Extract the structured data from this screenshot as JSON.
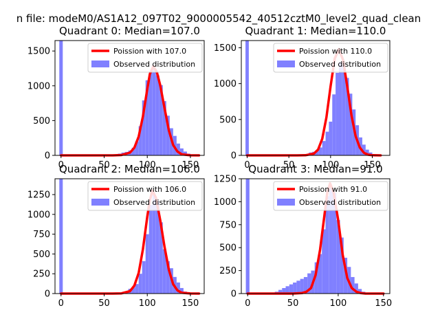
{
  "figure": {
    "suptitle": "n file: modeM0/AS1A12_097T02_9000005542_40512cztM0_level2_quad_clean",
    "colors": {
      "hist": "#8080ff",
      "fit": "#ff0000",
      "axis": "#000000",
      "background": "#ffffff"
    }
  },
  "chart_data": [
    {
      "type": "bar",
      "title": "Quadrant 0: Median=107.0",
      "xlim": [
        -7,
        166
      ],
      "ylim": [
        0,
        1650
      ],
      "xticks": [
        0,
        50,
        100,
        150
      ],
      "yticks": [
        0,
        500,
        1000,
        1500
      ],
      "legend": {
        "position": "top-right",
        "entries": [
          "Poission with 107.0",
          "Observed distribution"
        ]
      },
      "bin_width": 4,
      "bars": [
        [
          -2,
          1650
        ],
        [
          62,
          10
        ],
        [
          66,
          25
        ],
        [
          70,
          40
        ],
        [
          74,
          50
        ],
        [
          78,
          70
        ],
        [
          82,
          110
        ],
        [
          86,
          200
        ],
        [
          90,
          420
        ],
        [
          94,
          790
        ],
        [
          98,
          1080
        ],
        [
          102,
          1200
        ],
        [
          106,
          1250
        ],
        [
          110,
          1150
        ],
        [
          114,
          1010
        ],
        [
          118,
          780
        ],
        [
          122,
          570
        ],
        [
          126,
          390
        ],
        [
          130,
          280
        ],
        [
          134,
          170
        ],
        [
          138,
          100
        ],
        [
          142,
          55
        ],
        [
          146,
          25
        ],
        [
          150,
          10
        ]
      ],
      "fit_line": {
        "name": "Poission with 107.0",
        "x": [
          0,
          60,
          70,
          80,
          85,
          90,
          95,
          100,
          103,
          107,
          111,
          115,
          120,
          125,
          130,
          135,
          140,
          150,
          160
        ],
        "y": [
          0,
          0,
          5,
          40,
          110,
          270,
          560,
          950,
          1170,
          1280,
          1200,
          1010,
          680,
          360,
          150,
          55,
          15,
          1,
          0
        ]
      }
    },
    {
      "type": "bar",
      "title": "Quadrant 1: Median=110.0",
      "xlim": [
        -7,
        171
      ],
      "ylim": [
        0,
        1600
      ],
      "xticks": [
        0,
        50,
        100,
        150
      ],
      "yticks": [
        0,
        500,
        1000,
        1500
      ],
      "legend": {
        "position": "top-right",
        "entries": [
          "Poission with 110.0",
          "Observed distribution"
        ]
      },
      "bin_width": 4,
      "bars": [
        [
          -2,
          1600
        ],
        [
          62,
          10
        ],
        [
          66,
          15
        ],
        [
          70,
          20
        ],
        [
          74,
          40
        ],
        [
          78,
          50
        ],
        [
          82,
          70
        ],
        [
          86,
          110
        ],
        [
          90,
          200
        ],
        [
          94,
          330
        ],
        [
          98,
          470
        ],
        [
          102,
          850
        ],
        [
          106,
          1150
        ],
        [
          110,
          1300
        ],
        [
          114,
          1250
        ],
        [
          118,
          1080
        ],
        [
          122,
          860
        ],
        [
          126,
          640
        ],
        [
          130,
          420
        ],
        [
          134,
          250
        ],
        [
          138,
          150
        ],
        [
          142,
          80
        ],
        [
          146,
          40
        ],
        [
          150,
          15
        ]
      ],
      "fit_line": {
        "name": "Poission with 110.0",
        "x": [
          0,
          60,
          70,
          80,
          85,
          90,
          95,
          100,
          105,
          110,
          115,
          120,
          125,
          130,
          135,
          140,
          145,
          150,
          160
        ],
        "y": [
          0,
          0,
          2,
          25,
          80,
          230,
          530,
          960,
          1350,
          1480,
          1330,
          960,
          560,
          270,
          110,
          35,
          10,
          2,
          0
        ]
      }
    },
    {
      "type": "bar",
      "title": "Quadrant 2: Median=106.0",
      "xlim": [
        -7,
        166
      ],
      "ylim": [
        0,
        1450
      ],
      "xticks": [
        0,
        50,
        100,
        150
      ],
      "yticks": [
        0,
        250,
        500,
        750,
        1000,
        1250
      ],
      "legend": {
        "position": "top-right",
        "entries": [
          "Poission with 106.0",
          "Observed distribution"
        ]
      },
      "bin_width": 4,
      "bars": [
        [
          -2,
          1450
        ],
        [
          66,
          5
        ],
        [
          70,
          10
        ],
        [
          74,
          25
        ],
        [
          78,
          60
        ],
        [
          82,
          80
        ],
        [
          86,
          120
        ],
        [
          90,
          250
        ],
        [
          94,
          410
        ],
        [
          98,
          750
        ],
        [
          102,
          1120
        ],
        [
          106,
          1250
        ],
        [
          110,
          1170
        ],
        [
          114,
          900
        ],
        [
          118,
          560
        ],
        [
          122,
          410
        ],
        [
          126,
          320
        ],
        [
          130,
          210
        ],
        [
          134,
          140
        ],
        [
          138,
          70
        ],
        [
          142,
          25
        ],
        [
          146,
          10
        ]
      ],
      "fit_line": {
        "name": "Poission with 106.0",
        "x": [
          0,
          60,
          70,
          80,
          85,
          90,
          95,
          100,
          103,
          106,
          110,
          115,
          120,
          125,
          130,
          135,
          140,
          150,
          160
        ],
        "y": [
          0,
          0,
          3,
          30,
          100,
          260,
          560,
          970,
          1180,
          1300,
          1210,
          930,
          590,
          300,
          120,
          40,
          10,
          1,
          0
        ]
      }
    },
    {
      "type": "bar",
      "title": "Quadrant 3: Median=91.0",
      "xlim": [
        -7,
        157
      ],
      "ylim": [
        0,
        1250
      ],
      "xticks": [
        0,
        50,
        100,
        150
      ],
      "yticks": [
        0,
        250,
        500,
        750,
        1000,
        1250
      ],
      "legend": {
        "position": "top-right",
        "entries": [
          "Poission with 91.0",
          "Observed distribution"
        ]
      },
      "bin_width": 4,
      "bars": [
        [
          -2,
          1250
        ],
        [
          30,
          20
        ],
        [
          34,
          40
        ],
        [
          38,
          60
        ],
        [
          42,
          80
        ],
        [
          46,
          100
        ],
        [
          50,
          120
        ],
        [
          54,
          140
        ],
        [
          58,
          160
        ],
        [
          62,
          180
        ],
        [
          66,
          220
        ],
        [
          70,
          250
        ],
        [
          74,
          340
        ],
        [
          78,
          430
        ],
        [
          82,
          700
        ],
        [
          86,
          1060
        ],
        [
          90,
          1150
        ],
        [
          94,
          1100
        ],
        [
          98,
          800
        ],
        [
          102,
          610
        ],
        [
          106,
          390
        ],
        [
          110,
          290
        ],
        [
          114,
          180
        ],
        [
          118,
          110
        ],
        [
          122,
          50
        ],
        [
          126,
          20
        ],
        [
          130,
          5
        ]
      ],
      "fit_line": {
        "name": "Poission with 91.0",
        "x": [
          0,
          50,
          60,
          65,
          70,
          75,
          80,
          85,
          88,
          91,
          95,
          100,
          105,
          110,
          115,
          120,
          125,
          130,
          140,
          150
        ],
        "y": [
          0,
          0,
          5,
          20,
          60,
          200,
          480,
          870,
          1100,
          1200,
          1100,
          800,
          420,
          170,
          60,
          20,
          5,
          0,
          0,
          0
        ]
      }
    }
  ]
}
